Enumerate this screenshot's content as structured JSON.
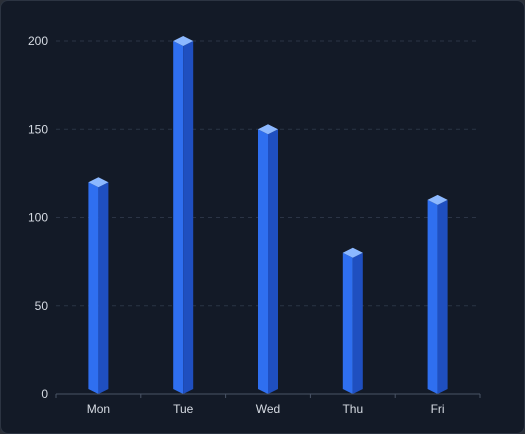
{
  "chart_data": {
    "type": "bar",
    "categories": [
      "Mon",
      "Tue",
      "Wed",
      "Thu",
      "Fri"
    ],
    "values": [
      120,
      200,
      150,
      80,
      110
    ],
    "title": "",
    "xlabel": "",
    "ylabel": "",
    "ylim": [
      0,
      200
    ],
    "yticks": [
      "0",
      "50",
      "100",
      "150",
      "200"
    ],
    "grid": true,
    "colors": {
      "background": "#131a27",
      "bar_front": "#2f6ff0",
      "bar_side": "#1f4fc0",
      "bar_top": "#8cb8ff",
      "grid": "#2b3445",
      "axis": "#4a5466",
      "text": "#d6dbe3"
    }
  }
}
